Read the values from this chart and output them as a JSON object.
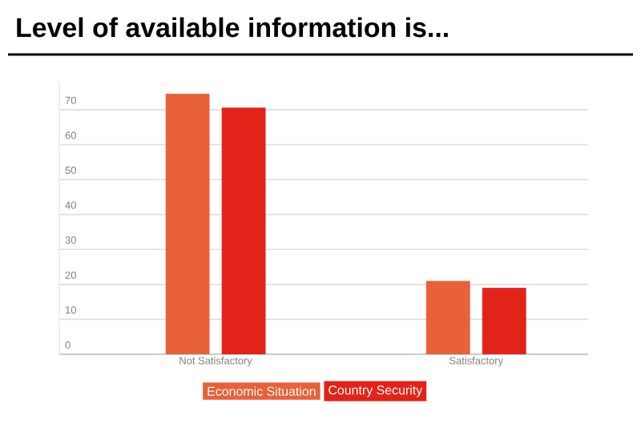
{
  "chart_data": {
    "type": "bar",
    "title": "Level of available information is...",
    "categories": [
      "Not Satisfactory",
      "Satisfactory"
    ],
    "series": [
      {
        "name": "Economic Situation",
        "color": "#e8613a",
        "values": [
          74.5,
          20.9
        ]
      },
      {
        "name": "Country Security",
        "color": "#e2231a",
        "values": [
          70.5,
          18.9
        ]
      }
    ],
    "ylim": [
      0,
      78
    ],
    "yticks": [
      0,
      10,
      20,
      30,
      40,
      50,
      60,
      70
    ],
    "grid": "y",
    "legend": "bottom"
  }
}
